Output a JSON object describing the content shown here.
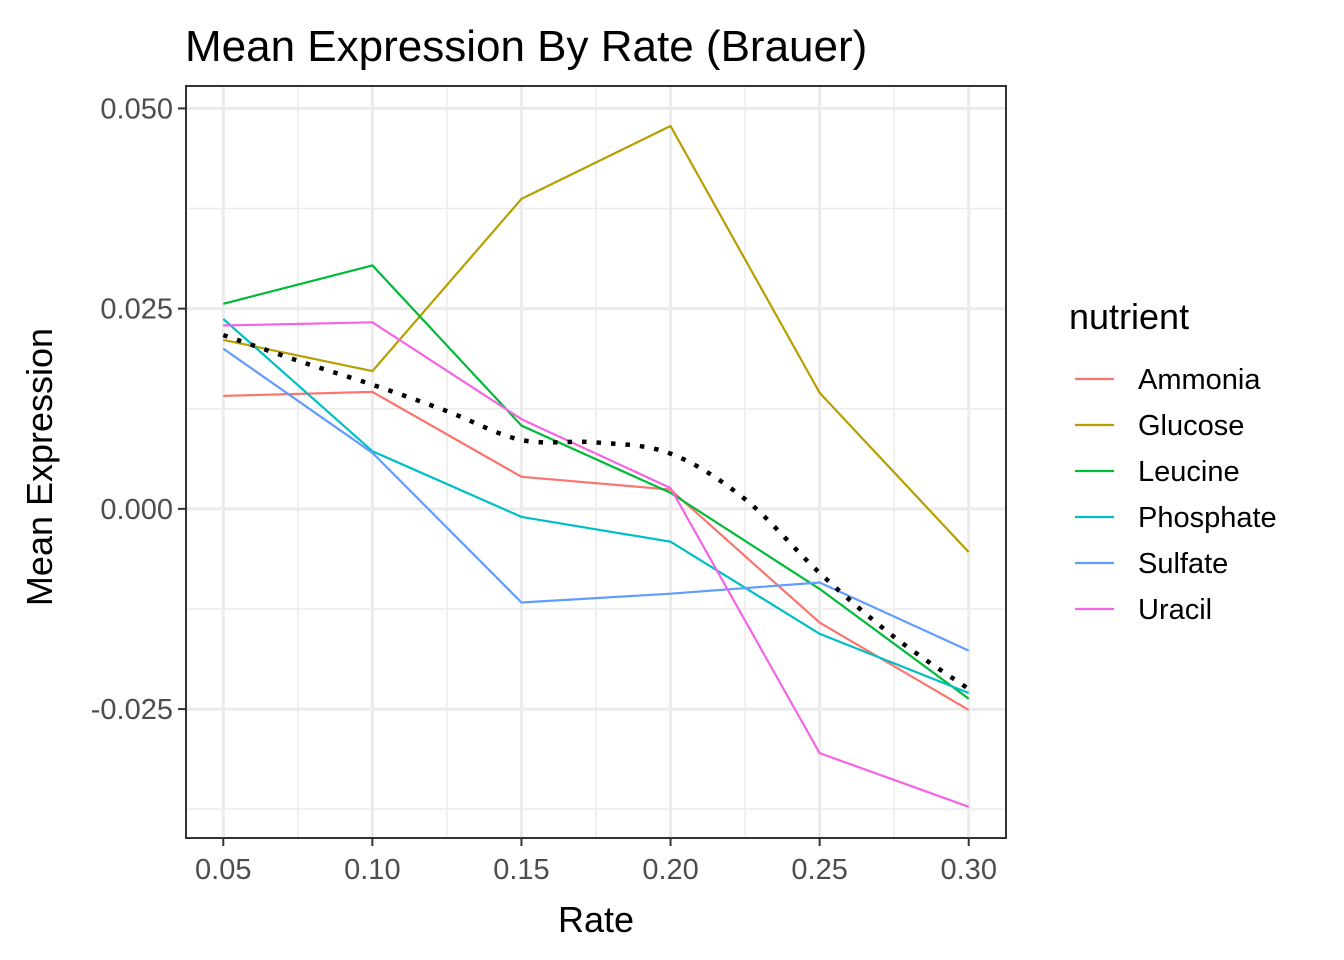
{
  "chart_data": {
    "type": "line",
    "title": "Mean Expression By Rate (Brauer)",
    "xlabel": "Rate",
    "ylabel": "Mean Expression",
    "x": [
      0.05,
      0.1,
      0.15,
      0.2,
      0.25,
      0.3
    ],
    "x_tick_labels": [
      "0.05",
      "0.10",
      "0.15",
      "0.20",
      "0.25",
      "0.30"
    ],
    "y_ticks": [
      -0.025,
      0.0,
      0.025,
      0.05
    ],
    "y_tick_labels": [
      "-0.025",
      "0.000",
      "0.025",
      "0.050"
    ],
    "xlim": [
      0.0375,
      0.3125
    ],
    "ylim": [
      -0.0411,
      0.0528
    ],
    "grid": true,
    "legend_title": "nutrient",
    "legend_position": "right",
    "series": [
      {
        "name": "Ammonia",
        "color": "#F8766D",
        "values": [
          0.0141,
          0.0146,
          0.004,
          0.0024,
          -0.0142,
          -0.0251
        ]
      },
      {
        "name": "Glucose",
        "color": "#B79F00",
        "values": [
          0.0211,
          0.0172,
          0.0387,
          0.0478,
          0.0145,
          -0.0054
        ]
      },
      {
        "name": "Leucine",
        "color": "#00BA38",
        "values": [
          0.0256,
          0.0304,
          0.0104,
          0.002,
          -0.01,
          -0.0237
        ]
      },
      {
        "name": "Phosphate",
        "color": "#00BFC4",
        "values": [
          0.0237,
          0.0072,
          -0.001,
          -0.0041,
          -0.0156,
          -0.023
        ]
      },
      {
        "name": "Sulfate",
        "color": "#619CFF",
        "values": [
          0.02,
          0.007,
          -0.0117,
          -0.0106,
          -0.0092,
          -0.0177
        ]
      },
      {
        "name": "Uracil",
        "color": "#F564E3",
        "values": [
          0.0229,
          0.0233,
          0.0112,
          0.0026,
          -0.0305,
          -0.0372
        ]
      }
    ],
    "trend": {
      "style": "dotted",
      "color": "#000000",
      "x": [
        0.05,
        0.075,
        0.1,
        0.125,
        0.15,
        0.175,
        0.2,
        0.225,
        0.25,
        0.275,
        0.3
      ],
      "values": [
        0.0217,
        0.0185,
        0.0155,
        0.0122,
        0.0086,
        0.0083,
        0.0069,
        0.0012,
        -0.008,
        -0.016,
        -0.0225
      ]
    }
  }
}
